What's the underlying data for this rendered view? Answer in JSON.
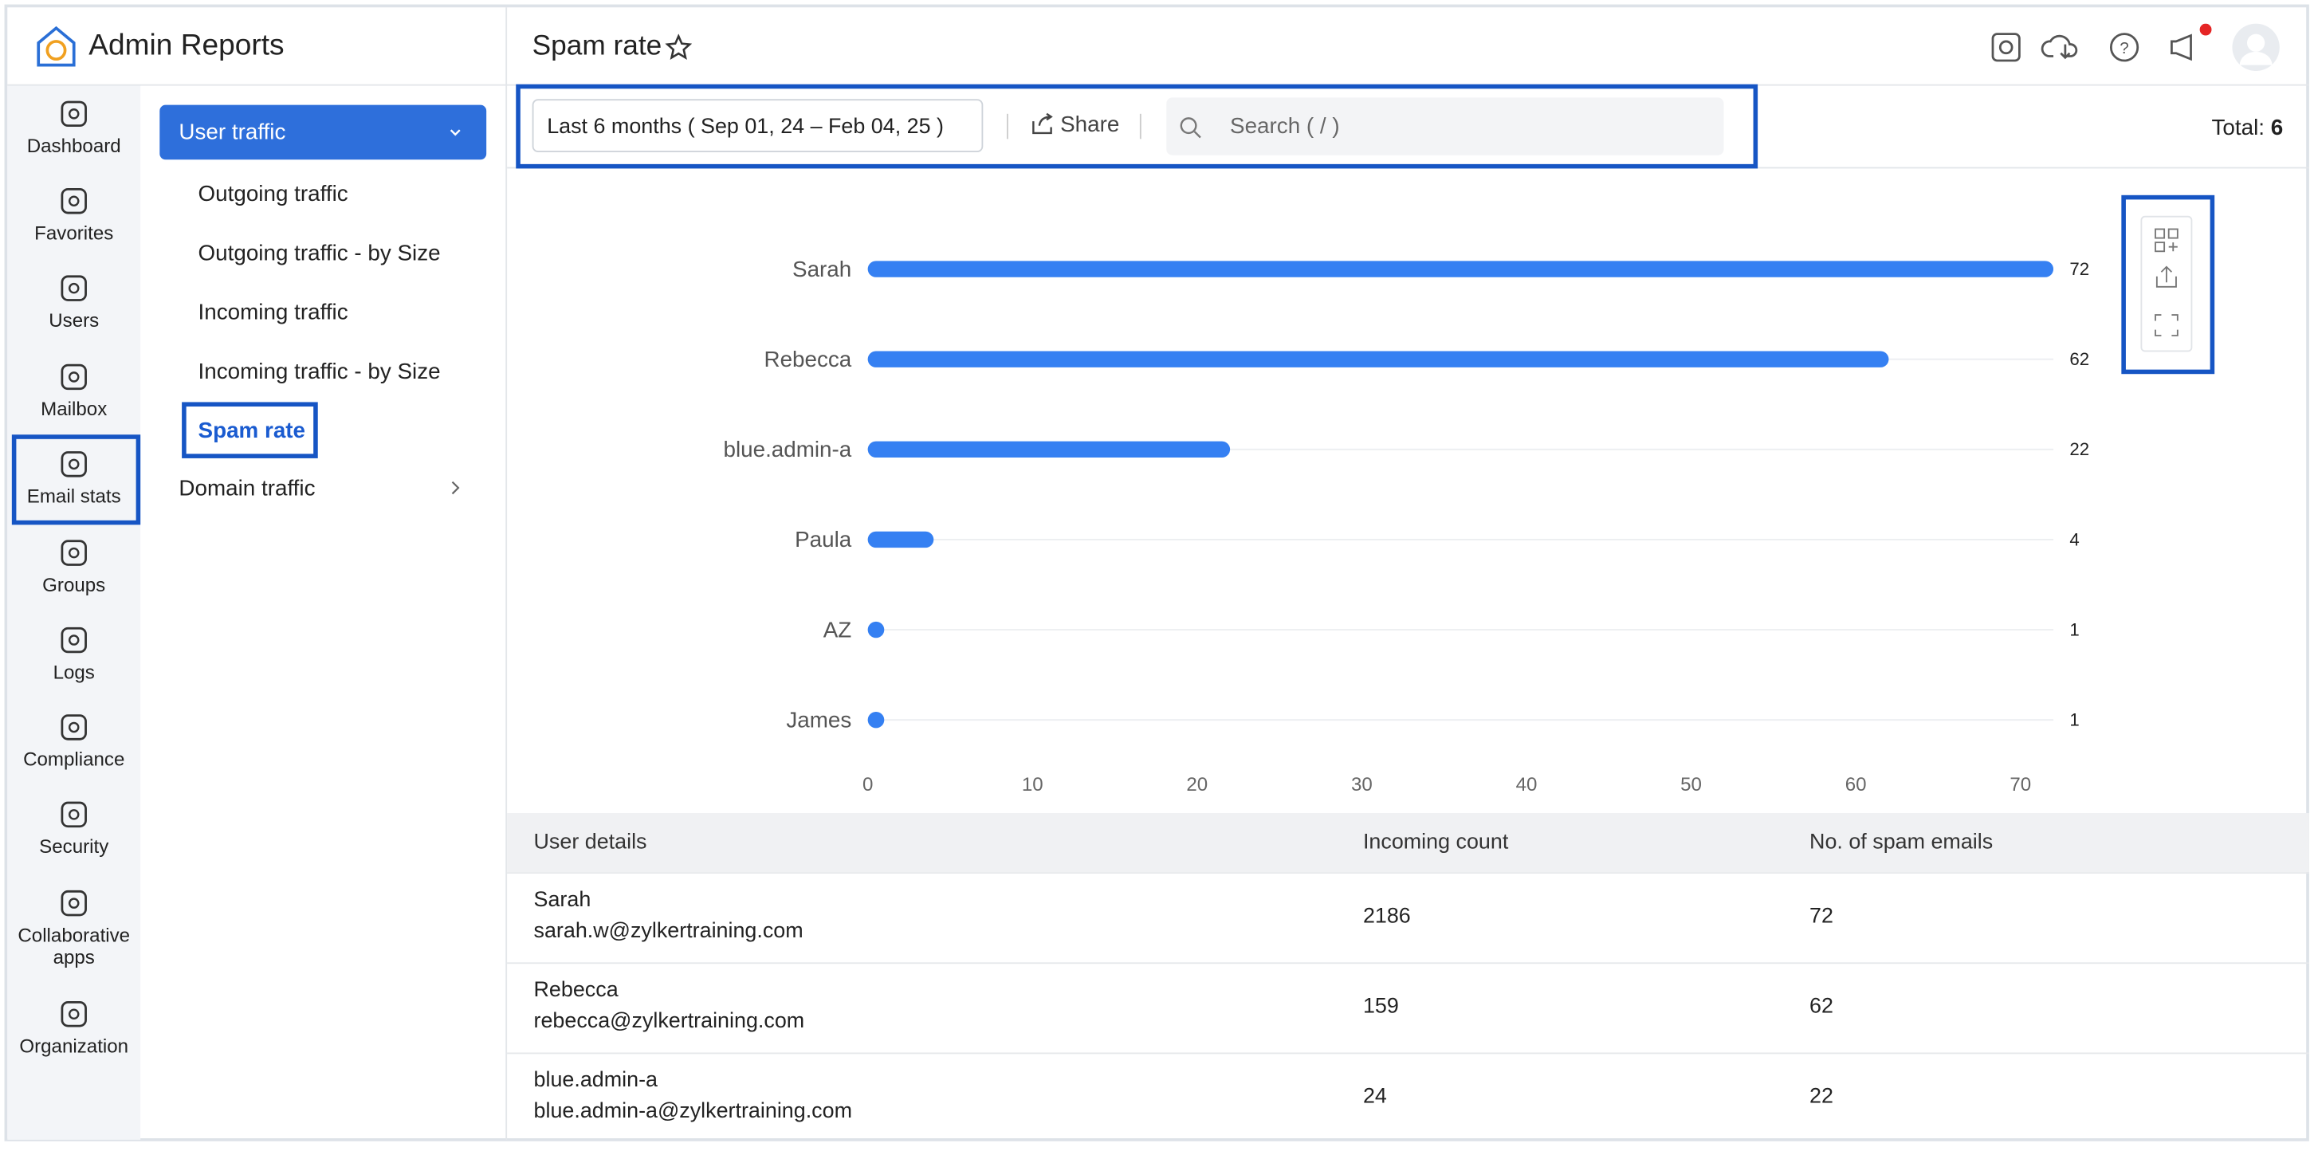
{
  "app": {
    "title": "Admin Reports"
  },
  "nav": [
    "Dashboard",
    "Favorites",
    "Users",
    "Mailbox",
    "Email stats",
    "Groups",
    "Logs",
    "Compliance",
    "Security",
    "Collaborative apps",
    "Organization"
  ],
  "submenu": {
    "group": "User traffic",
    "items": [
      "Outgoing traffic",
      "Outgoing traffic - by Size",
      "Incoming traffic",
      "Incoming traffic - by Size",
      "Spam rate"
    ],
    "other": "Domain traffic"
  },
  "page": {
    "title": "Spam rate"
  },
  "toolbar": {
    "date_range": "Last 6 months ( Sep 01, 24 – Feb 04, 25 )",
    "share": "Share",
    "search": "Search ( / )",
    "total_label": "Total:",
    "total": 6
  },
  "chart_data": {
    "type": "bar",
    "orientation": "horizontal",
    "categories": [
      "Sarah",
      "Rebecca",
      "blue.admin-a",
      "Paula",
      "AZ",
      "James"
    ],
    "values": [
      72,
      62,
      22,
      4,
      1,
      1
    ],
    "color": "#3580f2",
    "xlim": [
      0,
      72
    ],
    "xticks": [
      0,
      10,
      20,
      30,
      40,
      50,
      60,
      70
    ]
  },
  "table": {
    "headers": [
      "User details",
      "Incoming count",
      "No. of spam emails"
    ],
    "rows": [
      [
        "Sarah",
        "sarah.w@zylkertraining.com",
        2186,
        72
      ],
      [
        "Rebecca",
        "rebecca@zylkertraining.com",
        159,
        62
      ],
      [
        "blue.admin-a",
        "blue.admin-a@zylkertraining.com",
        24,
        22
      ]
    ]
  }
}
